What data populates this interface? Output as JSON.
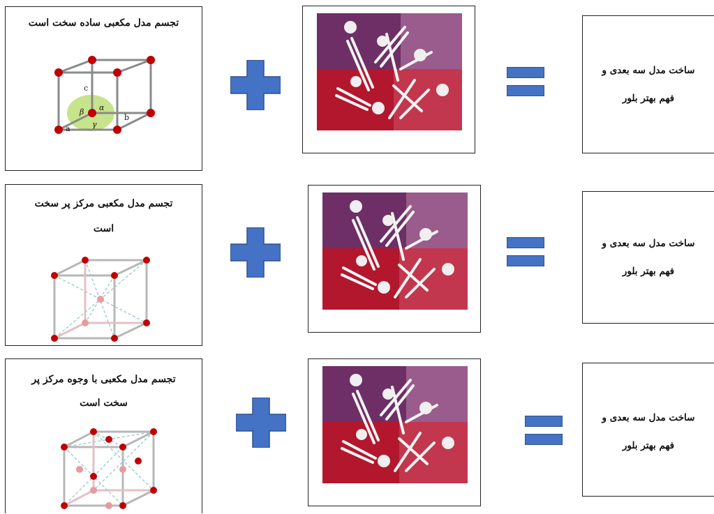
{
  "rows": [
    {
      "left_title": "تجسم مدل مکعبی ساده سخت است",
      "lattice_labels": {
        "a": "a",
        "b": "b",
        "c": "c",
        "alpha": "α",
        "beta": "β",
        "gamma": "γ"
      },
      "result_line1": "ساخت مدل سه بعدی و",
      "result_line2": "فهم بهتر بلور"
    },
    {
      "left_title_line1": "تجسم مدل مکعبی مرکز پر سخت",
      "left_title_line2": "است",
      "result_line1": "ساخت مدل سه بعدی و",
      "result_line2": "فهم بهتر بلور"
    },
    {
      "left_title_line1": "تجسم مدل مکعبی با وجوه مرکز پر",
      "left_title_line2": "سخت است",
      "result_line1": "ساخت مدل سه بعدی و",
      "result_line2": "فهم بهتر بلور"
    }
  ],
  "colors": {
    "accent_blue": "#4472c4",
    "atom_red": "#c00000",
    "angle_green": "#c6e48b"
  }
}
